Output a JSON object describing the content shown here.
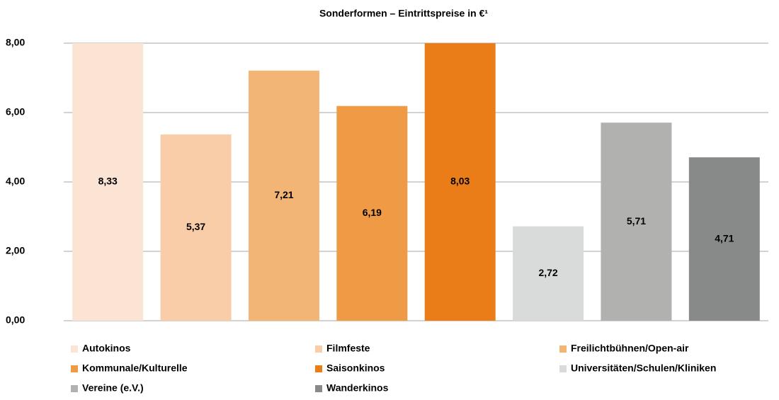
{
  "chart_data": {
    "type": "bar",
    "title": "Sonderformen  – Eintrittspreise in €¹",
    "series": [
      {
        "name": "Autokinos",
        "color": "#fce4d4",
        "values": [
          8.33
        ],
        "value_labels": [
          "8,33"
        ]
      },
      {
        "name": "Filmfeste",
        "color": "#f9cda8",
        "values": [
          5.37
        ],
        "value_labels": [
          "5,37"
        ]
      },
      {
        "name": "Freilichtbühnen/Open-air",
        "color": "#f3b576",
        "values": [
          7.21
        ],
        "value_labels": [
          "7,21"
        ]
      },
      {
        "name": "Kommunale/Kulturelle",
        "color": "#ef9a45",
        "values": [
          6.19
        ],
        "value_labels": [
          "6,19"
        ]
      },
      {
        "name": "Saisonkinos",
        "color": "#ea7d18",
        "values": [
          8.03
        ],
        "value_labels": [
          "8,03"
        ]
      },
      {
        "name": "Universitäten/Schulen/Kliniken",
        "color": "#d9dada",
        "values": [
          2.72
        ],
        "value_labels": [
          "2,72"
        ]
      },
      {
        "name": "Vereine (e.V.)",
        "color": "#b1b1b0",
        "values": [
          5.71
        ],
        "value_labels": [
          "5,71"
        ]
      },
      {
        "name": "Wanderkinos",
        "color": "#878a89",
        "values": [
          4.71
        ],
        "value_labels": [
          "4,71"
        ]
      }
    ],
    "ylim": [
      0,
      8
    ],
    "yticks": [
      {
        "value": 0,
        "label": "0,00"
      },
      {
        "value": 2,
        "label": "2,00"
      },
      {
        "value": 4,
        "label": "4,00"
      },
      {
        "value": 6,
        "label": "6,00"
      },
      {
        "value": 8,
        "label": "8,00"
      }
    ],
    "grid": true,
    "legend": "bottom"
  }
}
